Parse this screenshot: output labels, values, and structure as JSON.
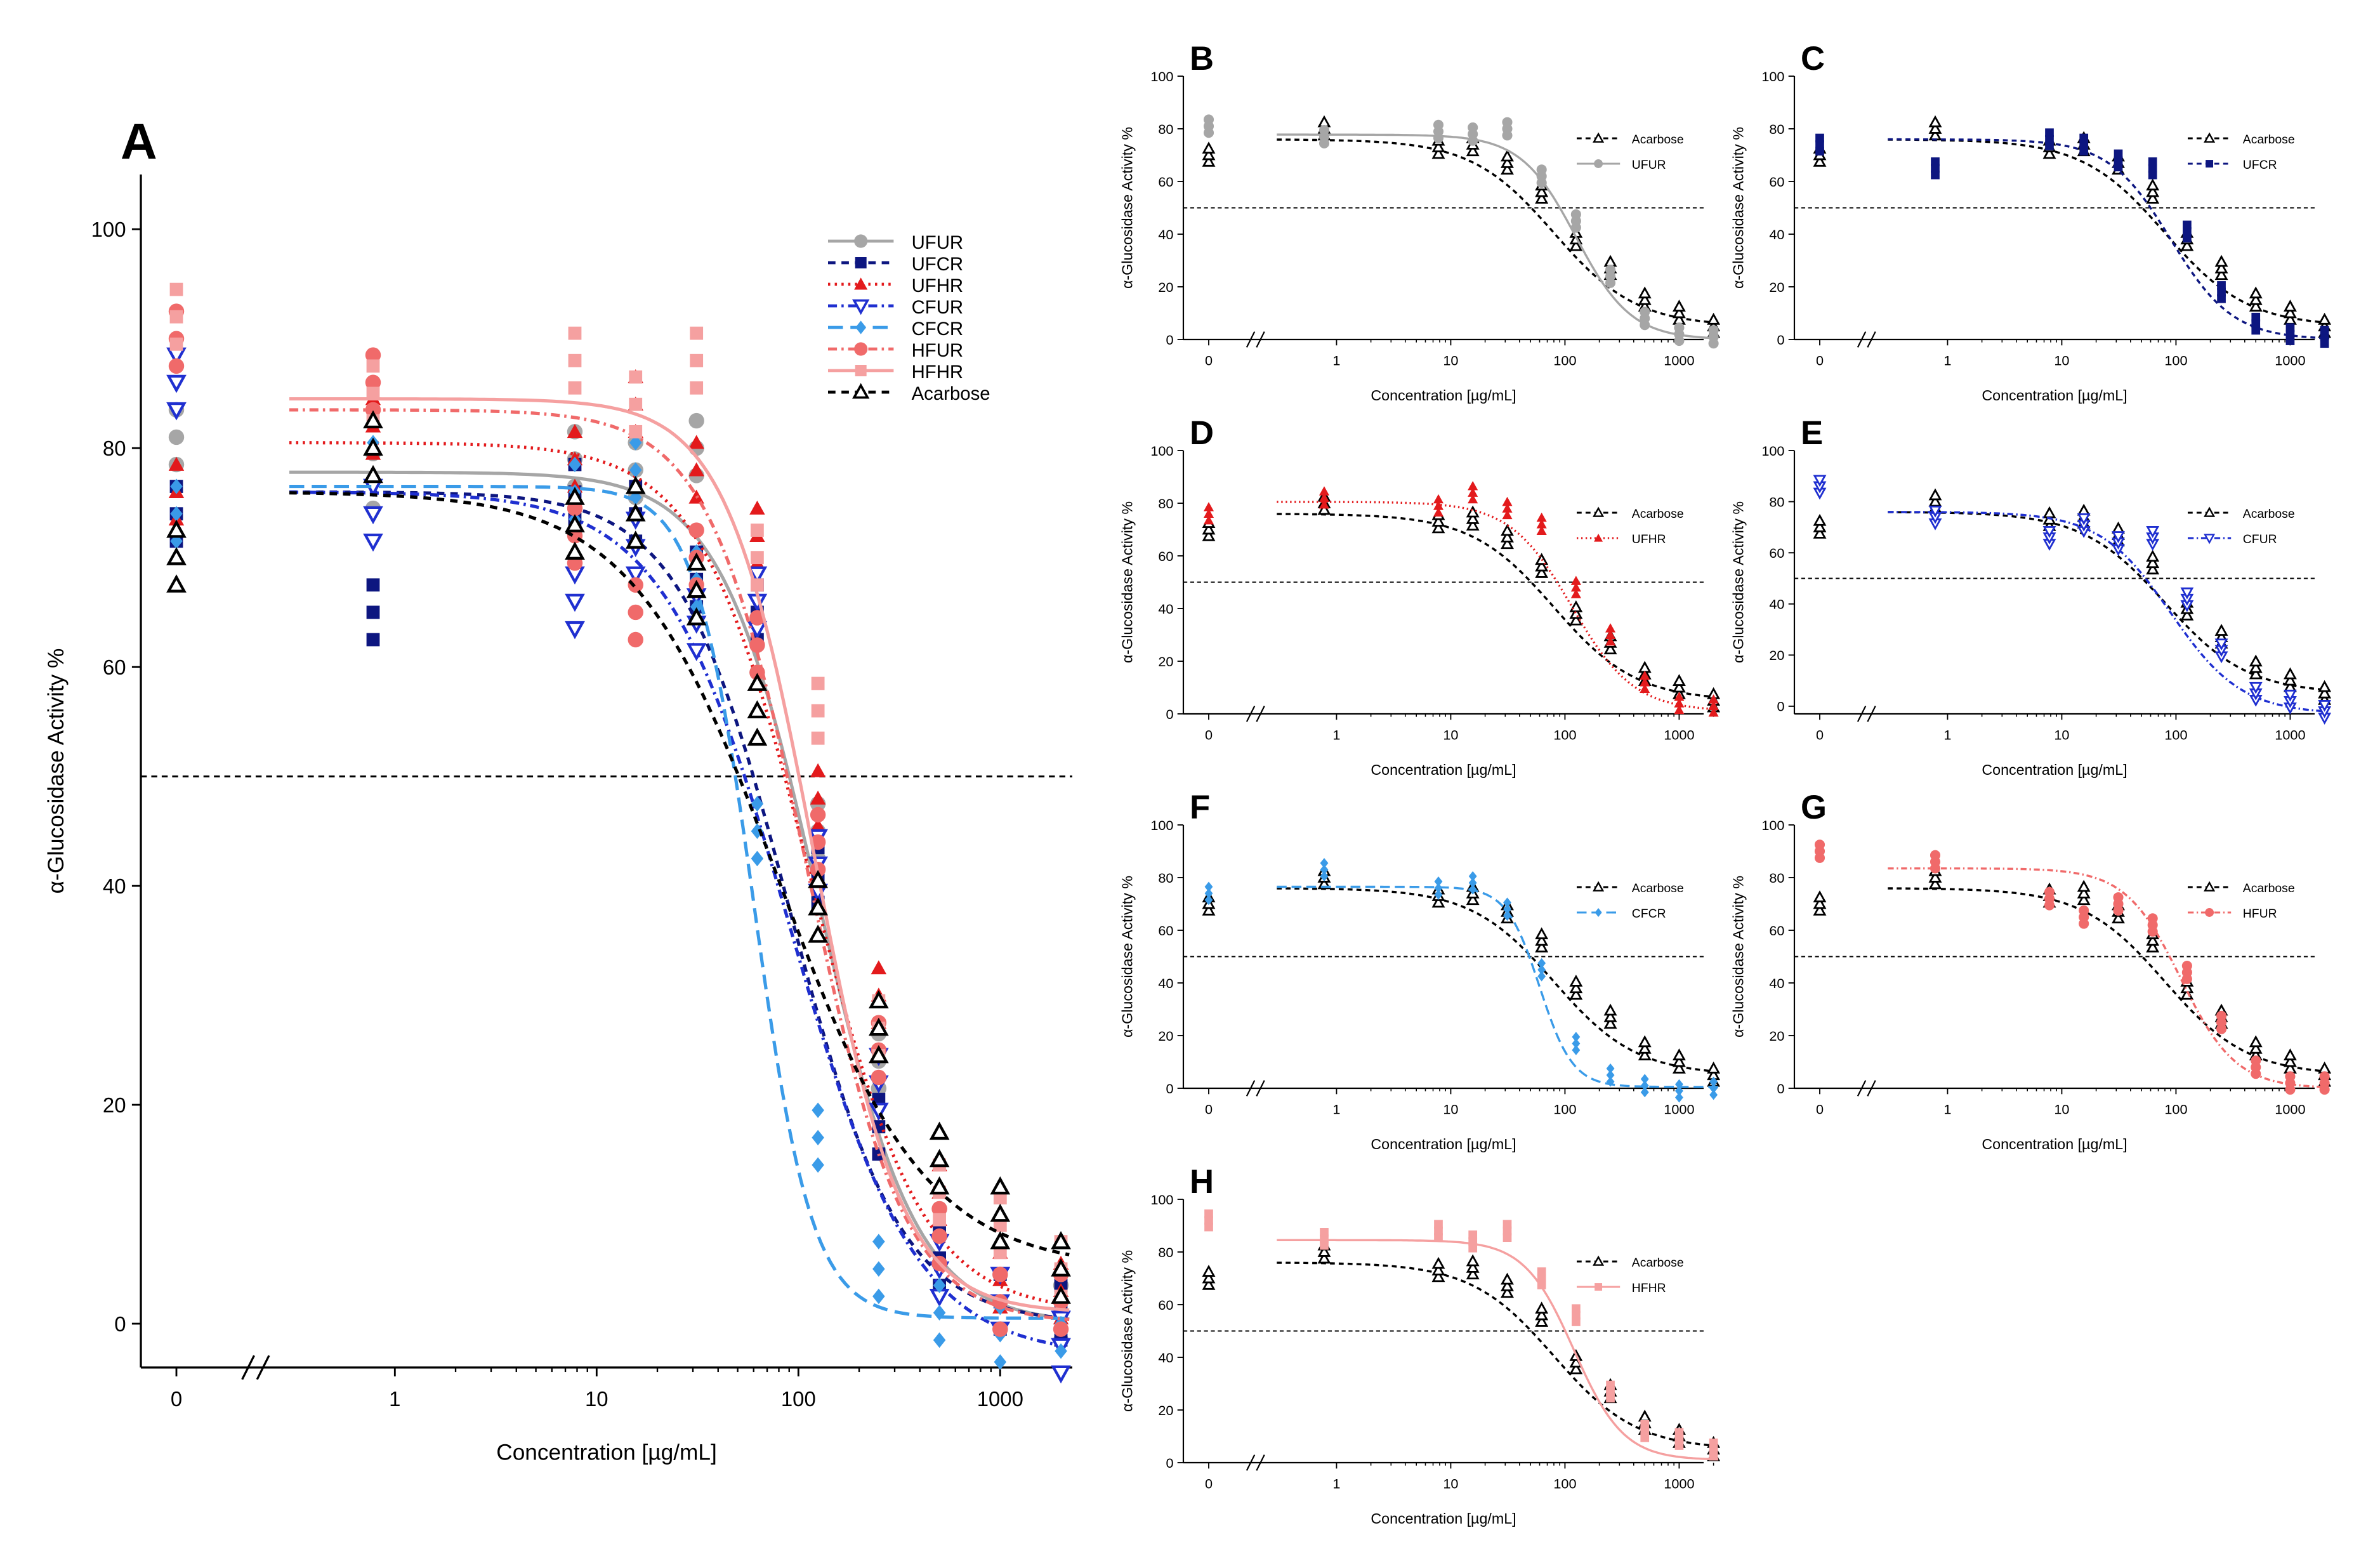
{
  "figure": {
    "series_styles": {
      "UFUR": {
        "color": "#a6a6a6",
        "dash": "solid",
        "marker": "circle"
      },
      "UFCR": {
        "color": "#0d1680",
        "dash": "dashed",
        "marker": "square"
      },
      "UFHR": {
        "color": "#e31a1c",
        "dash": "dotted",
        "marker": "triangle-up"
      },
      "CFUR": {
        "color": "#1f2fd0",
        "dash": "dashdot",
        "marker": "triangle-down-open"
      },
      "CFCR": {
        "color": "#3a9be8",
        "dash": "longdash",
        "marker": "diamond"
      },
      "HFUR": {
        "color": "#f06a6a",
        "dash": "dashdot",
        "marker": "circle"
      },
      "HFHR": {
        "color": "#f5a0a0",
        "dash": "solid",
        "marker": "square"
      },
      "Acarbose": {
        "color": "#000000",
        "dash": "dashed",
        "marker": "triangle-up-open"
      }
    }
  },
  "chart_data": [
    {
      "panel": "A",
      "type": "scatter",
      "title": "",
      "xlabel": "Concentration [µg/mL]",
      "ylabel": "α-Glucosidase Activity %",
      "xscale": "log with broken axis at 0",
      "xticks": [
        "0",
        "1",
        "10",
        "100",
        "1000"
      ],
      "yticks": [
        "0",
        "20",
        "40",
        "60",
        "80",
        "100"
      ],
      "ylim": [
        -4,
        105
      ],
      "reference_line_y": 50,
      "legend": [
        "UFUR",
        "UFCR",
        "UFHR",
        "CFUR",
        "CFCR",
        "HFUR",
        "HFHR",
        "Acarbose"
      ],
      "legend_position": "top-right",
      "x": [
        0,
        0.78,
        7.8,
        15.6,
        31.25,
        62.5,
        125,
        250,
        500,
        1000,
        2000
      ],
      "series": [
        {
          "name": "UFUR",
          "top": 77.8,
          "bottom": 0,
          "ic50": 125,
          "hill": 1.8,
          "values": [
            81,
            77,
            79,
            78,
            80,
            62,
            45,
            24,
            8,
            2,
            1
          ]
        },
        {
          "name": "UFCR",
          "top": 76,
          "bottom": 0,
          "ic50": 90,
          "hill": 1.6,
          "values": [
            74,
            65,
            76,
            74,
            68,
            65,
            41,
            18,
            6,
            2,
            1
          ]
        },
        {
          "name": "UFHR",
          "top": 80.5,
          "bottom": 1,
          "ic50": 115,
          "hill": 1.6,
          "values": [
            76,
            82,
            79,
            84,
            78,
            72,
            48,
            30,
            12,
            4,
            3
          ]
        },
        {
          "name": "CFUR",
          "top": 76,
          "bottom": -3,
          "ic50": 90,
          "hill": 1.4,
          "values": [
            86,
            74,
            66,
            71,
            64,
            66,
            42,
            22,
            5,
            2,
            -2
          ]
        },
        {
          "name": "CFCR",
          "top": 76.5,
          "bottom": 0.5,
          "ic50": 60,
          "hill": 3.0,
          "values": [
            74,
            83,
            76,
            78,
            68,
            45,
            17,
            5,
            1,
            -1,
            0
          ]
        },
        {
          "name": "HFUR",
          "top": 83.5,
          "bottom": 0,
          "ic50": 110,
          "hill": 1.8,
          "values": [
            90,
            86,
            72,
            65,
            70,
            62,
            44,
            25,
            8,
            2,
            2
          ]
        },
        {
          "name": "HFHR",
          "top": 84.5,
          "bottom": 1,
          "ic50": 120,
          "hill": 2.0,
          "values": [
            92,
            85,
            88,
            84,
            88,
            70,
            56,
            27,
            12,
            9,
            5
          ]
        },
        {
          "name": "Acarbose",
          "top": 76,
          "bottom": 5,
          "ic50": 80,
          "hill": 1.2,
          "values": [
            70,
            80,
            73,
            74,
            67,
            56,
            38,
            27,
            15,
            10,
            5
          ]
        }
      ]
    },
    {
      "panel": "B",
      "type": "scatter",
      "xlabel": "Concentration [µg/mL]",
      "ylabel": "α-Glucosidase Activity %",
      "xticks": [
        "0",
        "1",
        "10",
        "100",
        "1000"
      ],
      "yticks": [
        "0",
        "20",
        "40",
        "60",
        "80",
        "100"
      ],
      "ylim": [
        0,
        100
      ],
      "reference_line_y": 50,
      "legend": [
        "Acarbose",
        "UFUR"
      ],
      "series": [
        "Acarbose",
        "UFUR"
      ]
    },
    {
      "panel": "C",
      "type": "scatter",
      "xlabel": "Concentration [µg/mL]",
      "ylabel": "α-Glucosidase Activity %",
      "xticks": [
        "0",
        "1",
        "10",
        "100",
        "1000"
      ],
      "yticks": [
        "0",
        "20",
        "40",
        "60",
        "80",
        "100"
      ],
      "ylim": [
        0,
        100
      ],
      "reference_line_y": 50,
      "legend": [
        "Acarbose",
        "UFCR"
      ],
      "series": [
        "Acarbose",
        "UFCR"
      ]
    },
    {
      "panel": "D",
      "type": "scatter",
      "xlabel": "Concentration [µg/mL]",
      "ylabel": "α-Glucosidase Activity %",
      "xticks": [
        "0",
        "1",
        "10",
        "100",
        "1000"
      ],
      "yticks": [
        "0",
        "20",
        "40",
        "60",
        "80",
        "100"
      ],
      "ylim": [
        0,
        100
      ],
      "reference_line_y": 50,
      "legend": [
        "Acarbose",
        "UFHR"
      ],
      "series": [
        "Acarbose",
        "UFHR"
      ]
    },
    {
      "panel": "E",
      "type": "scatter",
      "xlabel": "Concentration [µg/mL]",
      "ylabel": "α-Glucosidase Activity %",
      "xticks": [
        "0",
        "1",
        "10",
        "100",
        "1000"
      ],
      "yticks": [
        "0",
        "20",
        "40",
        "60",
        "80",
        "100"
      ],
      "ylim": [
        -3,
        100
      ],
      "reference_line_y": 50,
      "legend": [
        "Acarbose",
        "CFUR"
      ],
      "series": [
        "Acarbose",
        "CFUR"
      ]
    },
    {
      "panel": "F",
      "type": "scatter",
      "xlabel": "Concentration [µg/mL]",
      "ylabel": "α-Glucosidase Activity %",
      "xticks": [
        "0",
        "1",
        "10",
        "100",
        "1000"
      ],
      "yticks": [
        "0",
        "20",
        "40",
        "60",
        "80",
        "100"
      ],
      "ylim": [
        0,
        100
      ],
      "reference_line_y": 50,
      "legend": [
        "Acarbose",
        "CFCR"
      ],
      "series": [
        "Acarbose",
        "CFCR"
      ]
    },
    {
      "panel": "G",
      "type": "scatter",
      "xlabel": "Concentration [µg/mL]",
      "ylabel": "α-Glucosidase Activity %",
      "xticks": [
        "0",
        "1",
        "10",
        "100",
        "1000"
      ],
      "yticks": [
        "0",
        "20",
        "40",
        "60",
        "80",
        "100"
      ],
      "ylim": [
        0,
        100
      ],
      "reference_line_y": 50,
      "legend": [
        "Acarbose",
        "HFUR"
      ],
      "series": [
        "Acarbose",
        "HFUR"
      ]
    },
    {
      "panel": "H",
      "type": "scatter",
      "xlabel": "Concentration [µg/mL]",
      "ylabel": "α-Glucosidase Activity %",
      "xticks": [
        "0",
        "1",
        "10",
        "100",
        "1000"
      ],
      "yticks": [
        "0",
        "20",
        "40",
        "60",
        "80",
        "100"
      ],
      "ylim": [
        0,
        100
      ],
      "reference_line_y": 50,
      "legend": [
        "Acarbose",
        "HFHR"
      ],
      "series": [
        "Acarbose",
        "HFHR"
      ]
    }
  ]
}
